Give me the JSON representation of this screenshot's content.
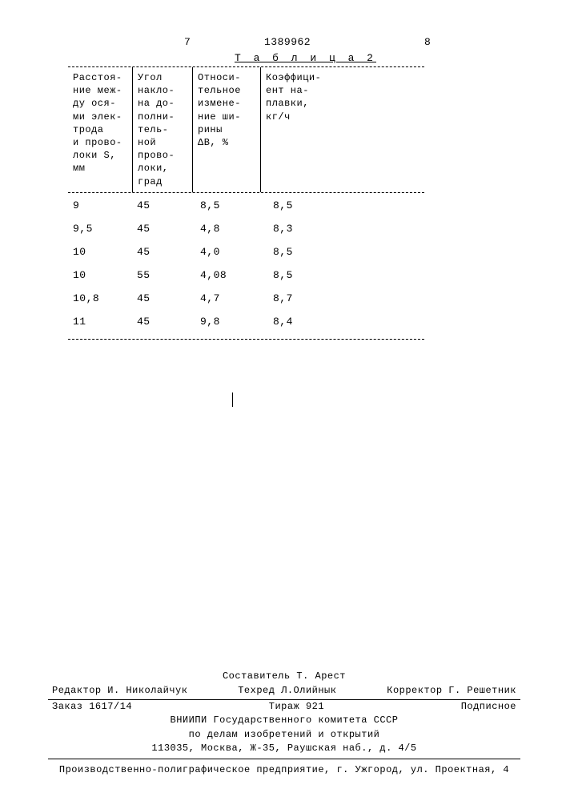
{
  "page": {
    "num_left": "7",
    "num_center": "1389962",
    "num_right": "8"
  },
  "table": {
    "title": "Т а б л и ц а  2",
    "columns": [
      "Расстоя-\nние меж-\nду ося-\nми элек-\nтрода\nи прово-\nлоки S,\nмм",
      "Угол\nнакло-\nна до-\nполни-\nтель-\nной\nпрово-\nлоки,\nград",
      "Относи-\nтельное\nизмене-\nние ши-\nрины\nΔB, %",
      "Коэффици-\nент на-\nплавки,\nкг/ч"
    ],
    "rows": [
      [
        "9",
        "45",
        "8,5",
        "8,5"
      ],
      [
        "9,5",
        "45",
        "4,8",
        "8,3"
      ],
      [
        "10",
        "45",
        "4,0",
        "8,5"
      ],
      [
        "10",
        "55",
        "4,08",
        "8,5"
      ],
      [
        "10,8",
        "45",
        "4,7",
        "8,7"
      ],
      [
        "11",
        "45",
        "9,8",
        "8,4"
      ]
    ]
  },
  "footer": {
    "compiler": "Составитель Т. Арест",
    "editor": "Редактор И. Николайчук",
    "techred": "Техред Л.Олийнык",
    "corrector": "Корректор Г. Решетник",
    "order": "Заказ 1617/14",
    "circulation": "Тираж 921",
    "subscription": "Подписное",
    "org1": "ВНИИПИ Государственного комитета СССР",
    "org2": "по делам изобретений и открытий",
    "address": "113035, Москва, Ж-35, Раушская наб., д. 4/5",
    "printer": "Производственно-полиграфическое предприятие, г. Ужгород, ул. Проектная, 4"
  }
}
